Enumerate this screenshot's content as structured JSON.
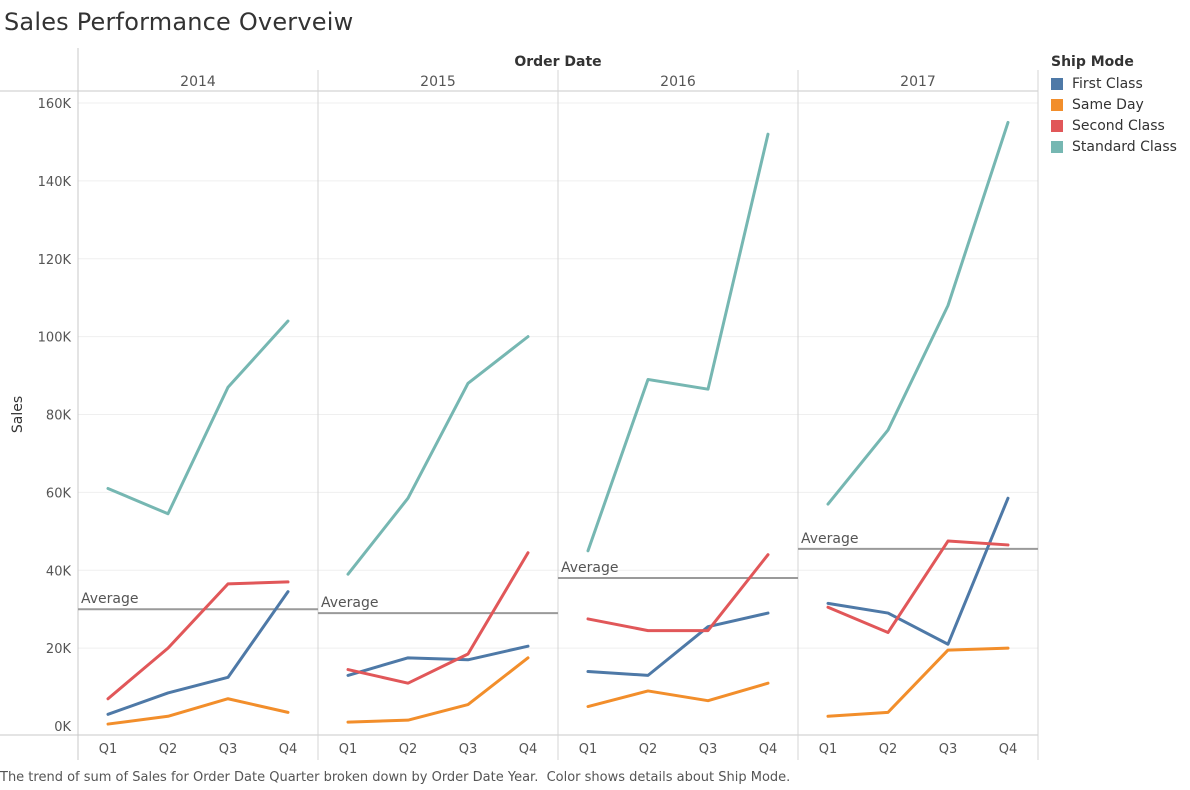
{
  "title": "Sales Performance Overveiw",
  "caption": "The trend of sum of Sales for Order Date Quarter broken down by Order Date Year.  Color shows details about Ship Mode.",
  "chart_data": {
    "type": "line",
    "column_header": "Order Date",
    "ylabel": "Sales",
    "years": [
      "2014",
      "2015",
      "2016",
      "2017"
    ],
    "quarters": [
      "Q1",
      "Q2",
      "Q3",
      "Q4"
    ],
    "ylim": [
      0,
      160000
    ],
    "y_ticks": [
      0,
      20000,
      40000,
      60000,
      80000,
      100000,
      120000,
      140000,
      160000
    ],
    "y_tick_labels": [
      "0K",
      "20K",
      "40K",
      "60K",
      "80K",
      "100K",
      "120K",
      "140K",
      "160K"
    ],
    "grid": true,
    "legend": {
      "title": "Ship Mode",
      "position": "right"
    },
    "reference_line": {
      "label": "Average",
      "values": [
        30000,
        29000,
        38000,
        45500
      ]
    },
    "series": [
      {
        "name": "First Class",
        "color": "#4e79a7",
        "values": [
          [
            3000,
            8500,
            12500,
            34500
          ],
          [
            13000,
            17500,
            17000,
            20500
          ],
          [
            14000,
            13000,
            25500,
            29000
          ],
          [
            31500,
            29000,
            21000,
            58500
          ]
        ]
      },
      {
        "name": "Same Day",
        "color": "#f28e2b",
        "values": [
          [
            500,
            2500,
            7000,
            3500
          ],
          [
            1000,
            1500,
            5500,
            17500
          ],
          [
            5000,
            9000,
            6500,
            11000
          ],
          [
            2500,
            3500,
            19500,
            20000
          ]
        ]
      },
      {
        "name": "Second Class",
        "color": "#e15759",
        "values": [
          [
            7000,
            20000,
            36500,
            37000
          ],
          [
            14500,
            11000,
            18500,
            44500
          ],
          [
            27500,
            24500,
            24500,
            44000
          ],
          [
            30500,
            24000,
            47500,
            46500
          ]
        ]
      },
      {
        "name": "Standard Class",
        "color": "#76b7b2",
        "values": [
          [
            61000,
            54500,
            87000,
            104000
          ],
          [
            39000,
            58500,
            88000,
            100000
          ],
          [
            45000,
            89000,
            86500,
            152000
          ],
          [
            57000,
            76000,
            108000,
            155000
          ]
        ]
      }
    ]
  }
}
